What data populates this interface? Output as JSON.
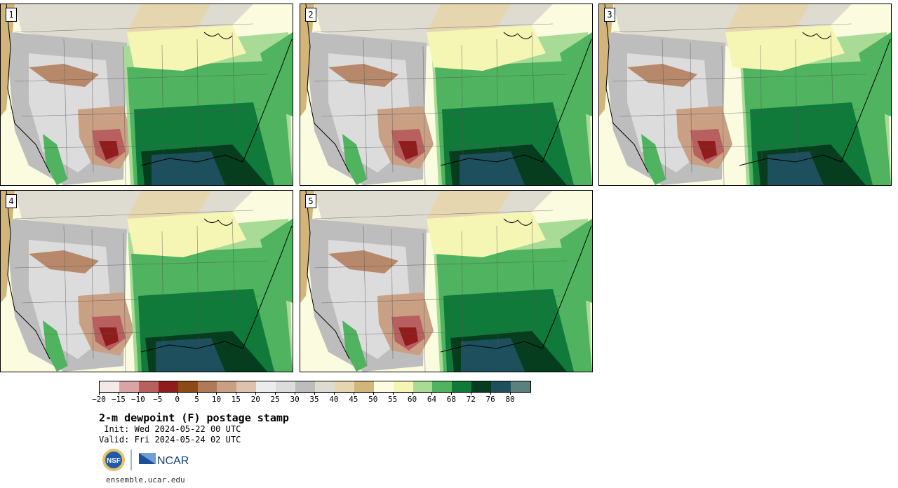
{
  "panels": [
    {
      "label": "1"
    },
    {
      "label": "2"
    },
    {
      "label": "3"
    },
    {
      "label": "4"
    },
    {
      "label": "5"
    }
  ],
  "colorbar": {
    "colors": [
      "#f3e9e9",
      "#d8a4a4",
      "#b86060",
      "#901c1c",
      "#8c4a14",
      "#b07a56",
      "#c9a084",
      "#dec2ae",
      "#ececec",
      "#dcdcdc",
      "#bdbdbd",
      "#dedcd0",
      "#e6d6b0",
      "#d1b57a",
      "#fcfde0",
      "#f5f6b4",
      "#a8dc96",
      "#4fb35f",
      "#0f7a3a",
      "#053d1e",
      "#1d4f5c",
      "#5a8080"
    ],
    "ticks": [
      "−20",
      "−15",
      "−10",
      "−5",
      "0",
      "5",
      "10",
      "15",
      "20",
      "25",
      "30",
      "35",
      "40",
      "45",
      "50",
      "55",
      "60",
      "64",
      "68",
      "72",
      "76",
      "80"
    ]
  },
  "title": "2-m dewpoint (F) postage stamp",
  "init": " Init: Wed 2024-05-22 00 UTC",
  "valid": "Valid: Fri 2024-05-24 02 UTC",
  "logos": {
    "nsf": "NSF",
    "ncar": "NCAR"
  },
  "site": "ensemble.ucar.edu"
}
